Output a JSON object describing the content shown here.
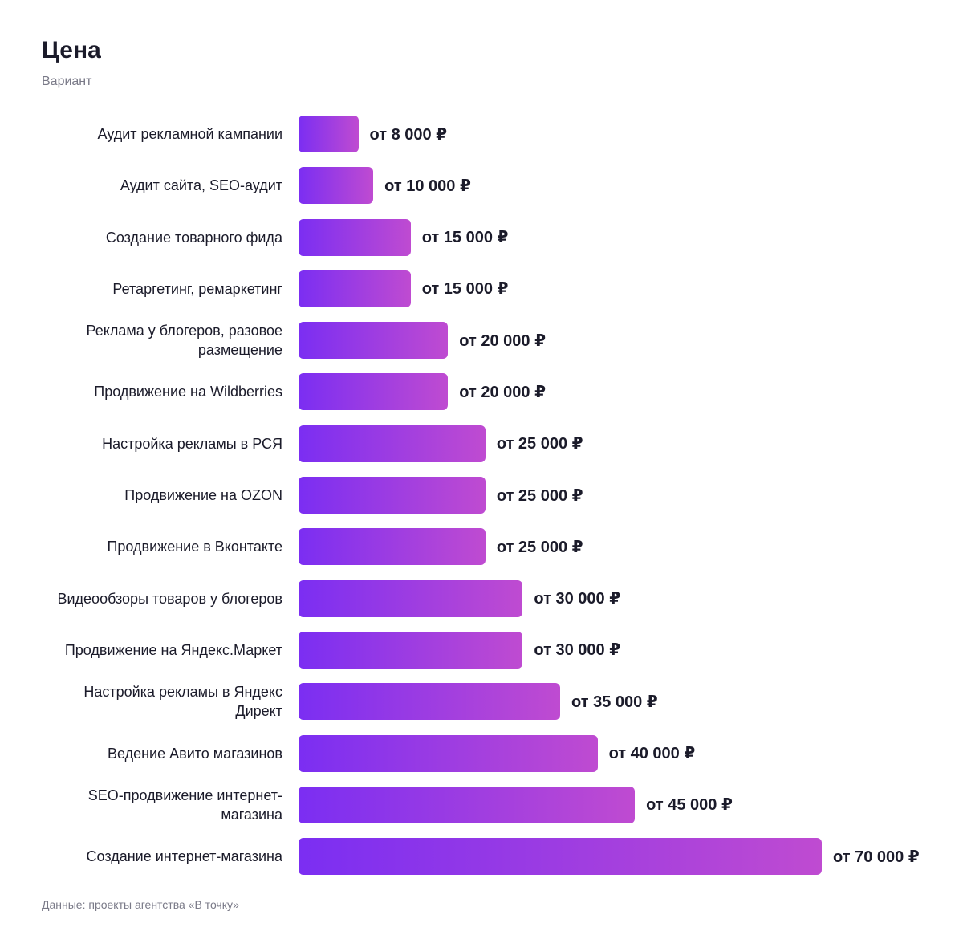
{
  "chart_data": {
    "type": "bar",
    "orientation": "horizontal",
    "title": "Цена",
    "subtitle": "Вариант",
    "categories": [
      "Аудит рекламной кампании",
      "Аудит сайта, SEO-аудит",
      "Создание товарного фида",
      "Ретаргетинг, ремаркетинг",
      "Реклама у блогеров, разовое размещение",
      "Продвижение на Wildberries",
      "Настройка рекламы в РСЯ",
      "Продвижение на OZON",
      "Продвижение в Вконтакте",
      "Видеообзоры товаров у блогеров",
      "Продвижение на Яндекс.Маркет",
      "Настройка рекламы в Яндекс Директ",
      "Ведение Авито магазинов",
      "SEO-продвижение интернет-магазина",
      "Создание интернет-магазина"
    ],
    "values": [
      8000,
      10000,
      15000,
      15000,
      20000,
      20000,
      25000,
      25000,
      25000,
      30000,
      30000,
      35000,
      40000,
      45000,
      70000
    ],
    "value_labels": [
      "от 8 000 ₽",
      "от 10 000 ₽",
      "от 15 000 ₽",
      "от 15 000 ₽",
      "от 20 000 ₽",
      "от 20 000 ₽",
      "от 25 000 ₽",
      "от 25 000 ₽",
      "от 25 000 ₽",
      "от 30 000 ₽",
      "от 30 000 ₽",
      "от 35 000 ₽",
      "от 40 000 ₽",
      "от 45 000 ₽",
      "от 70 000 ₽"
    ],
    "gradient": [
      "#7b2ef2",
      "#bf4bd1"
    ],
    "source": "Данные: проекты агентства «В точку»"
  }
}
